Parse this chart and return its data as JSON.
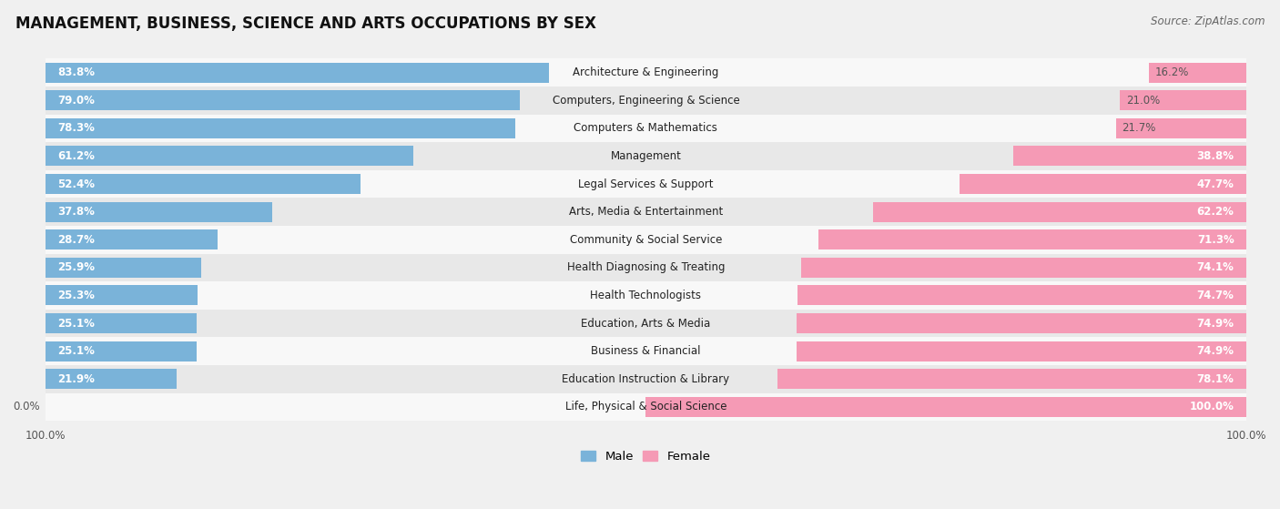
{
  "title": "MANAGEMENT, BUSINESS, SCIENCE AND ARTS OCCUPATIONS BY SEX",
  "source": "Source: ZipAtlas.com",
  "categories": [
    "Architecture & Engineering",
    "Computers, Engineering & Science",
    "Computers & Mathematics",
    "Management",
    "Legal Services & Support",
    "Arts, Media & Entertainment",
    "Community & Social Service",
    "Health Diagnosing & Treating",
    "Health Technologists",
    "Education, Arts & Media",
    "Business & Financial",
    "Education Instruction & Library",
    "Life, Physical & Social Science"
  ],
  "male": [
    83.8,
    79.0,
    78.3,
    61.2,
    52.4,
    37.8,
    28.7,
    25.9,
    25.3,
    25.1,
    25.1,
    21.9,
    0.0
  ],
  "female": [
    16.2,
    21.0,
    21.7,
    38.8,
    47.7,
    62.2,
    71.3,
    74.1,
    74.7,
    74.9,
    74.9,
    78.1,
    100.0
  ],
  "male_color": "#7ab3d9",
  "female_color": "#f59ab5",
  "background_color": "#f0f0f0",
  "row_bg_light": "#f8f8f8",
  "row_bg_dark": "#e8e8e8",
  "title_fontsize": 12,
  "bar_label_fontsize": 8.5,
  "cat_label_fontsize": 8.5,
  "source_fontsize": 8.5,
  "axis_label_fontsize": 8.5
}
